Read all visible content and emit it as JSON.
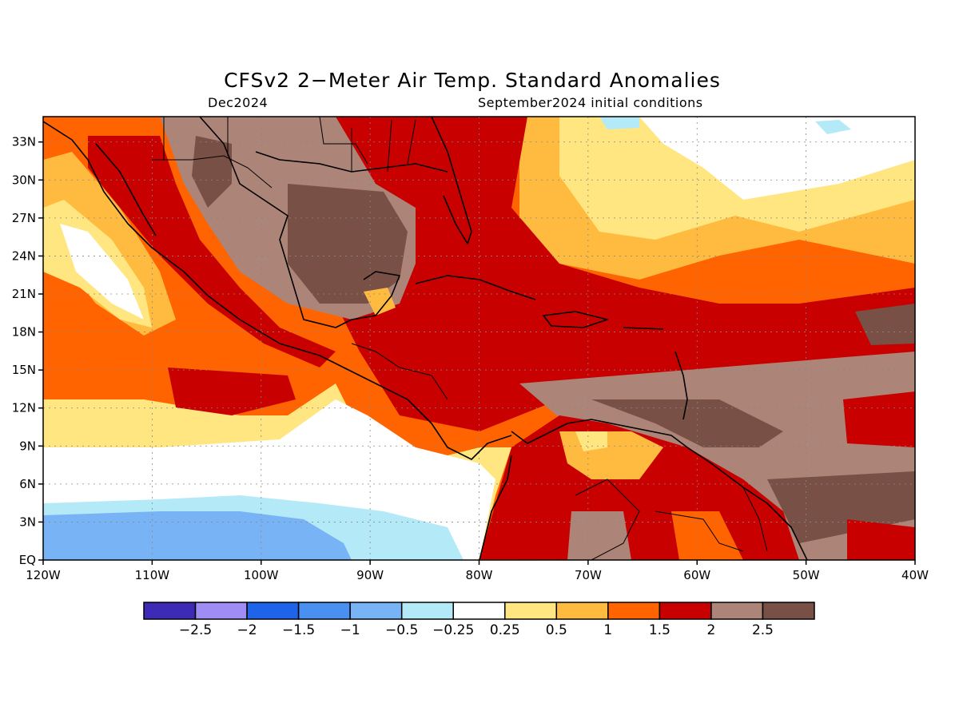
{
  "title": "CFSv2 2−Meter Air Temp. Standard Anomalies",
  "valid_month": "Dec2024",
  "initial_conditions": "September2024 initial conditions",
  "map_extent": {
    "lon_west": -120,
    "lon_east": -40,
    "lat_south": 0,
    "lat_north": 35
  },
  "lon_ticks": [
    {
      "value": -120,
      "label": "120W"
    },
    {
      "value": -110,
      "label": "110W"
    },
    {
      "value": -100,
      "label": "100W"
    },
    {
      "value": -90,
      "label": "90W"
    },
    {
      "value": -80,
      "label": "80W"
    },
    {
      "value": -70,
      "label": "70W"
    },
    {
      "value": -60,
      "label": "60W"
    },
    {
      "value": -50,
      "label": "50W"
    },
    {
      "value": -40,
      "label": "40W"
    }
  ],
  "lat_ticks": [
    {
      "value": 0,
      "label": "EQ"
    },
    {
      "value": 3,
      "label": "3N"
    },
    {
      "value": 6,
      "label": "6N"
    },
    {
      "value": 9,
      "label": "9N"
    },
    {
      "value": 12,
      "label": "12N"
    },
    {
      "value": 15,
      "label": "15N"
    },
    {
      "value": 18,
      "label": "18N"
    },
    {
      "value": 21,
      "label": "21N"
    },
    {
      "value": 24,
      "label": "24N"
    },
    {
      "value": 27,
      "label": "27N"
    },
    {
      "value": 30,
      "label": "30N"
    },
    {
      "value": 33,
      "label": "33N"
    }
  ],
  "colorbar": {
    "colors": [
      "#3d2bb5",
      "#a08cf5",
      "#1f64e8",
      "#4a90f0",
      "#78b4f5",
      "#b4eaf8",
      "#ffffff",
      "#ffe680",
      "#ffbb40",
      "#ff6400",
      "#c80000",
      "#ac8478",
      "#785046"
    ],
    "labels": [
      "−2.5",
      "−2",
      "−1.5",
      "−1",
      "−0.5",
      "−0.25",
      "0.25",
      "0.5",
      "1",
      "1.5",
      "2",
      "2.5"
    ]
  }
}
